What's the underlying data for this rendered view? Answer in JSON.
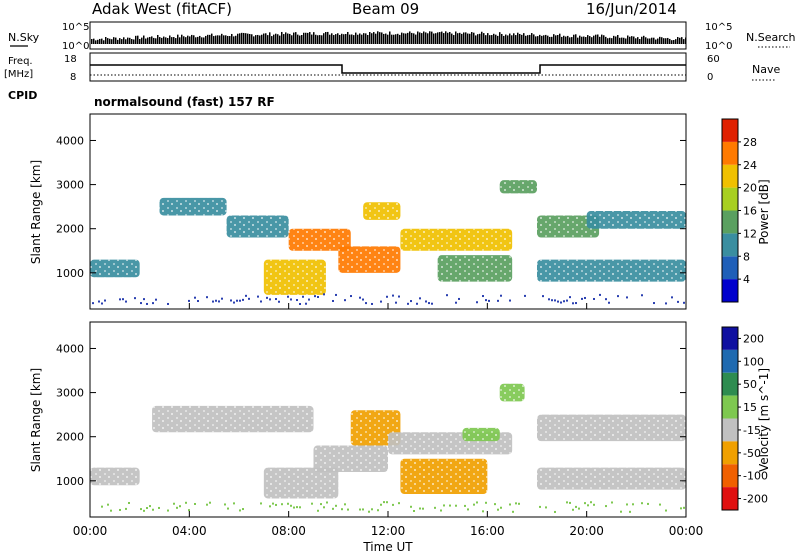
{
  "header": {
    "station": "Adak West (fitACF)",
    "beam": "Beam 09",
    "date": "16/Jun/2014"
  },
  "top_panels": {
    "nsky_label": "N.Sky",
    "nsearch_label": "N.Search",
    "nsky_ticks": [
      "10^5",
      "10^0"
    ],
    "freq_label_line1": "Freq.",
    "freq_label_line2": "[MHz]",
    "freq_ticks": [
      "18",
      "8"
    ],
    "nave_label": "Nave",
    "nave_ticks": [
      "60",
      "0"
    ],
    "cpid_label": "CPID",
    "cpid_value": "normalsound (fast) 157 RF"
  },
  "colors": {
    "text": "#000000",
    "gray_ground": "#c0c0c0"
  },
  "chart_data": [
    {
      "type": "heatmap",
      "quantity": "Power",
      "xlabel": "",
      "ylabel": "Slant Range [km]",
      "colorbar_label": "Power [dB]",
      "x_ticks": [
        "00:00",
        "04:00",
        "08:00",
        "12:00",
        "16:00",
        "20:00",
        "00:00"
      ],
      "xlim_hours": [
        0,
        24
      ],
      "y_ticks": [
        1000,
        2000,
        3000,
        4000
      ],
      "ylim_km": [
        180,
        4600
      ],
      "colorbar_ticks": [
        4,
        8,
        12,
        16,
        20,
        24,
        28
      ],
      "colorbar_colors": [
        "#0000cc",
        "#1f5fb8",
        "#3a8ea0",
        "#5aa060",
        "#a8d020",
        "#f0c000",
        "#ff7a00",
        "#e02000"
      ],
      "regions": [
        {
          "t0": 0.0,
          "t1": 2.0,
          "r0": 900,
          "r1": 1300,
          "power_db": 8
        },
        {
          "t0": 2.8,
          "t1": 5.5,
          "r0": 2300,
          "r1": 2700,
          "power_db": 9
        },
        {
          "t0": 5.5,
          "t1": 8.0,
          "r0": 1800,
          "r1": 2300,
          "power_db": 10
        },
        {
          "t0": 7.0,
          "t1": 9.5,
          "r0": 500,
          "r1": 1300,
          "power_db": 22
        },
        {
          "t0": 8.0,
          "t1": 10.5,
          "r0": 1500,
          "r1": 2000,
          "power_db": 26
        },
        {
          "t0": 10.0,
          "t1": 12.5,
          "r0": 1000,
          "r1": 1600,
          "power_db": 25
        },
        {
          "t0": 11.0,
          "t1": 12.5,
          "r0": 2200,
          "r1": 2600,
          "power_db": 20
        },
        {
          "t0": 12.5,
          "t1": 17.0,
          "r0": 1500,
          "r1": 2000,
          "power_db": 22
        },
        {
          "t0": 14.0,
          "t1": 17.0,
          "r0": 800,
          "r1": 1400,
          "power_db": 14
        },
        {
          "t0": 16.5,
          "t1": 18.0,
          "r0": 2800,
          "r1": 3100,
          "power_db": 14
        },
        {
          "t0": 18.0,
          "t1": 20.5,
          "r0": 1800,
          "r1": 2300,
          "power_db": 12
        },
        {
          "t0": 18.0,
          "t1": 24.0,
          "r0": 800,
          "r1": 1300,
          "power_db": 8
        },
        {
          "t0": 20.0,
          "t1": 24.0,
          "r0": 2000,
          "r1": 2400,
          "power_db": 10
        }
      ]
    },
    {
      "type": "heatmap",
      "quantity": "Velocity",
      "xlabel": "Time UT",
      "ylabel": "Slant Range [km]",
      "colorbar_label": "Velocity [m s^-1]",
      "x_ticks": [
        "00:00",
        "04:00",
        "08:00",
        "12:00",
        "16:00",
        "20:00",
        "00:00"
      ],
      "xlim_hours": [
        0,
        24
      ],
      "y_ticks": [
        1000,
        2000,
        3000,
        4000
      ],
      "ylim_km": [
        180,
        4600
      ],
      "colorbar_ticks": [
        "200",
        "100",
        "50",
        "15",
        "-15",
        "-50",
        "-100",
        "-200"
      ],
      "colorbar_colors": [
        "#1010a0",
        "#1f6ab0",
        "#2e8c50",
        "#7ec850",
        "#c0c0c0",
        "#f0a000",
        "#f06000",
        "#e01010"
      ],
      "regions": [
        {
          "t0": 2.5,
          "t1": 9.0,
          "r0": 2100,
          "r1": 2700,
          "velocity": 0
        },
        {
          "t0": 0.0,
          "t1": 2.0,
          "r0": 900,
          "r1": 1300,
          "velocity": 0
        },
        {
          "t0": 7.0,
          "t1": 10.0,
          "r0": 600,
          "r1": 1300,
          "velocity": 0
        },
        {
          "t0": 9.0,
          "t1": 12.0,
          "r0": 1200,
          "r1": 1800,
          "velocity": 0
        },
        {
          "t0": 10.5,
          "t1": 12.5,
          "r0": 1800,
          "r1": 2600,
          "velocity": -40
        },
        {
          "t0": 12.0,
          "t1": 17.0,
          "r0": 1600,
          "r1": 2100,
          "velocity": 0
        },
        {
          "t0": 15.0,
          "t1": 16.5,
          "r0": 1900,
          "r1": 2200,
          "velocity": 20
        },
        {
          "t0": 12.5,
          "t1": 16.0,
          "r0": 700,
          "r1": 1500,
          "velocity": -45
        },
        {
          "t0": 16.5,
          "t1": 17.5,
          "r0": 2800,
          "r1": 3200,
          "velocity": 20
        },
        {
          "t0": 18.0,
          "t1": 24.0,
          "r0": 800,
          "r1": 1300,
          "velocity": 0
        },
        {
          "t0": 18.0,
          "t1": 24.0,
          "r0": 1900,
          "r1": 2500,
          "velocity": 0
        }
      ]
    }
  ]
}
